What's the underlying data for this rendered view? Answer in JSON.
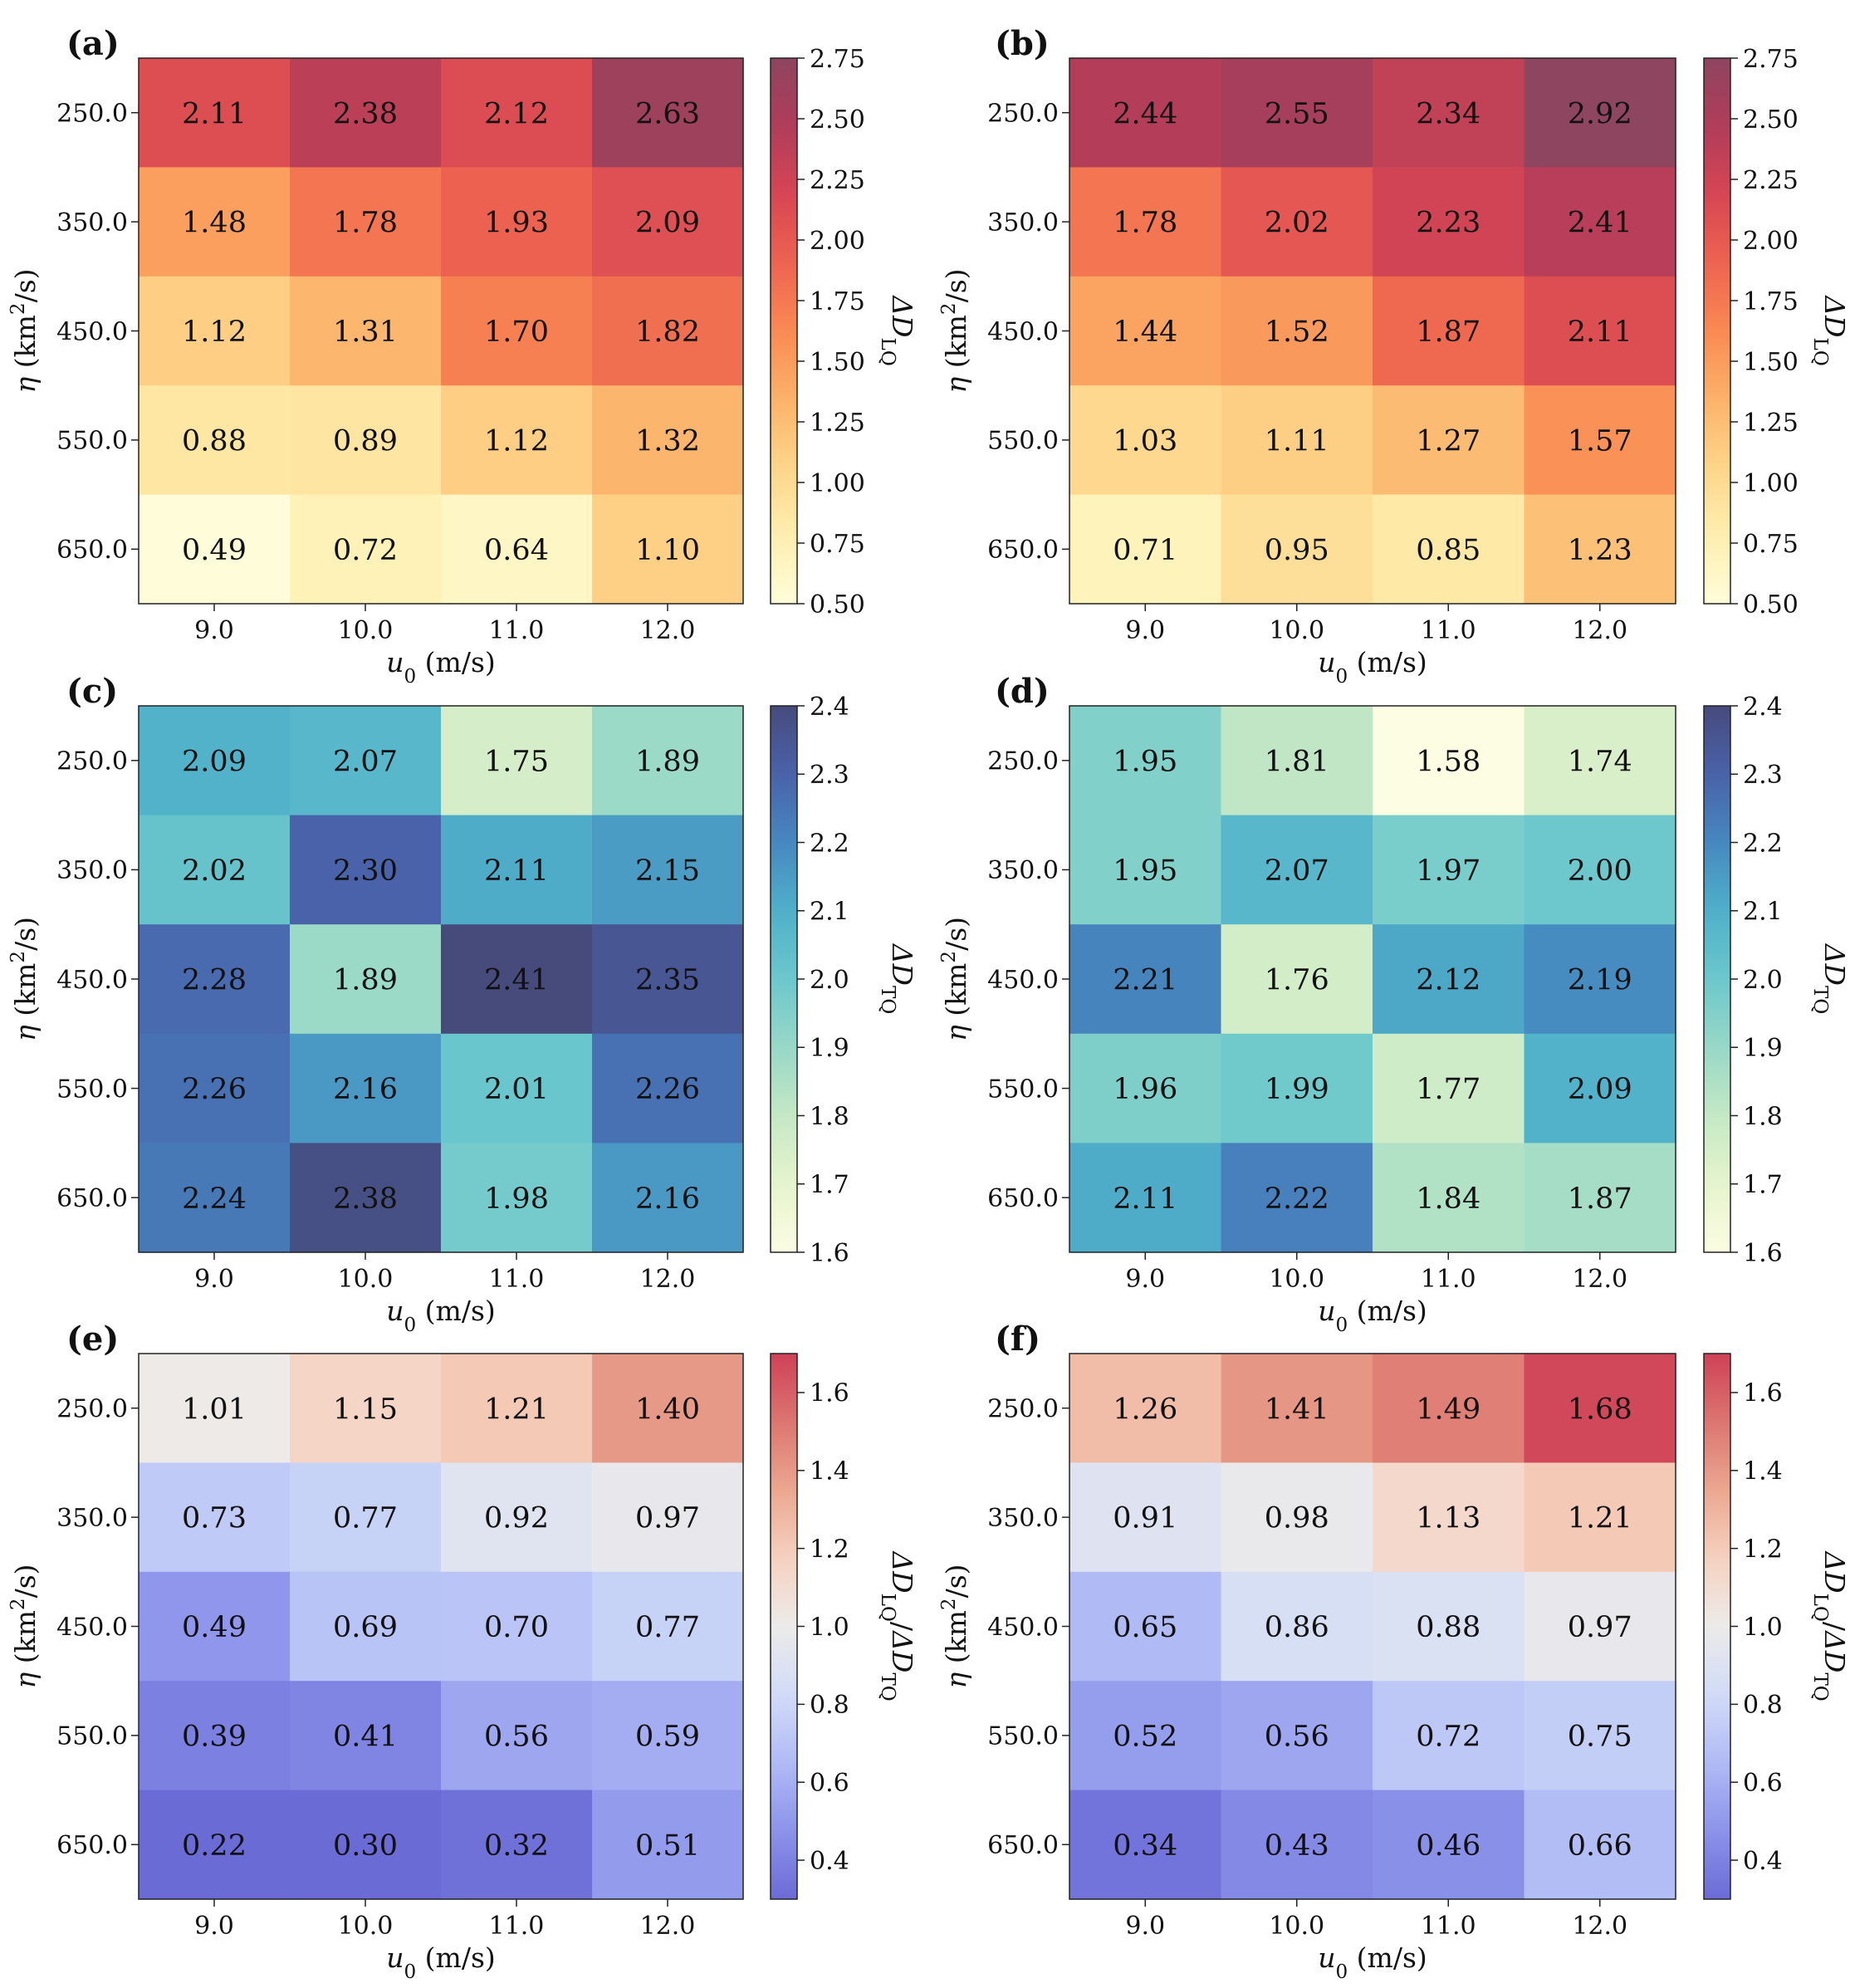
{
  "figure": {
    "x_axis_label_main": "u",
    "x_axis_label_sub": "0",
    "x_axis_label_unit": "(m/s)",
    "y_axis_label_main": "η",
    "y_axis_label_unit_pre": "(km",
    "y_axis_label_sup": "2",
    "y_axis_label_unit_post": "/s)"
  },
  "colorbar_labels": {
    "LQ": {
      "main": "ΔD",
      "sub": "LQ"
    },
    "TQ": {
      "main": "ΔD",
      "sub": "TQ"
    },
    "ratio": {
      "main1": "ΔD",
      "sub1": "LQ",
      "slash": "/",
      "main2": "ΔD",
      "sub2": "TQ"
    }
  },
  "chart_data": [
    {
      "type": "heatmap",
      "panel": "(a)",
      "xlabel": "u0 (m/s)",
      "ylabel": "η (km2/s)",
      "x": [
        "9.0",
        "10.0",
        "11.0",
        "12.0"
      ],
      "y": [
        "250.0",
        "350.0",
        "450.0",
        "550.0",
        "650.0"
      ],
      "values": [
        [
          2.11,
          2.38,
          2.12,
          2.63
        ],
        [
          1.48,
          1.78,
          1.93,
          2.09
        ],
        [
          1.12,
          1.31,
          1.7,
          1.82
        ],
        [
          0.88,
          0.89,
          1.12,
          1.32
        ],
        [
          0.49,
          0.72,
          0.64,
          1.1
        ]
      ],
      "labels": [
        [
          "2.11",
          "2.38",
          "2.12",
          "2.63"
        ],
        [
          "1.48",
          "1.78",
          "1.93",
          "2.09"
        ],
        [
          "1.12",
          "1.31",
          "1.70",
          "1.82"
        ],
        [
          "0.88",
          "0.89",
          "1.12",
          "1.32"
        ],
        [
          "0.49",
          "0.72",
          "0.64",
          "1.10"
        ]
      ],
      "colormap": "YlOrRd",
      "colorbar_label_key": "LQ",
      "clim": [
        0.5,
        2.75
      ],
      "cticks": [
        0.5,
        0.75,
        1.0,
        1.25,
        1.5,
        1.75,
        2.0,
        2.25,
        2.5,
        2.75
      ],
      "cticklabels": [
        "0.50",
        "0.75",
        "1.00",
        "1.25",
        "1.50",
        "1.75",
        "2.00",
        "2.25",
        "2.50",
        "2.75"
      ]
    },
    {
      "type": "heatmap",
      "panel": "(b)",
      "xlabel": "u0 (m/s)",
      "ylabel": "η (km2/s)",
      "x": [
        "9.0",
        "10.0",
        "11.0",
        "12.0"
      ],
      "y": [
        "250.0",
        "350.0",
        "450.0",
        "550.0",
        "650.0"
      ],
      "values": [
        [
          2.44,
          2.55,
          2.34,
          2.92
        ],
        [
          1.78,
          2.02,
          2.23,
          2.41
        ],
        [
          1.44,
          1.52,
          1.87,
          2.11
        ],
        [
          1.03,
          1.11,
          1.27,
          1.57
        ],
        [
          0.71,
          0.95,
          0.85,
          1.23
        ]
      ],
      "labels": [
        [
          "2.44",
          "2.55",
          "2.34",
          "2.92"
        ],
        [
          "1.78",
          "2.02",
          "2.23",
          "2.41"
        ],
        [
          "1.44",
          "1.52",
          "1.87",
          "2.11"
        ],
        [
          "1.03",
          "1.11",
          "1.27",
          "1.57"
        ],
        [
          "0.71",
          "0.95",
          "0.85",
          "1.23"
        ]
      ],
      "colormap": "YlOrRd",
      "colorbar_label_key": "LQ",
      "clim": [
        0.5,
        2.75
      ],
      "cticks": [
        0.5,
        0.75,
        1.0,
        1.25,
        1.5,
        1.75,
        2.0,
        2.25,
        2.5,
        2.75
      ],
      "cticklabels": [
        "0.50",
        "0.75",
        "1.00",
        "1.25",
        "1.50",
        "1.75",
        "2.00",
        "2.25",
        "2.50",
        "2.75"
      ]
    },
    {
      "type": "heatmap",
      "panel": "(c)",
      "xlabel": "u0 (m/s)",
      "ylabel": "η (km2/s)",
      "x": [
        "9.0",
        "10.0",
        "11.0",
        "12.0"
      ],
      "y": [
        "250.0",
        "350.0",
        "450.0",
        "550.0",
        "650.0"
      ],
      "values": [
        [
          2.09,
          2.07,
          1.75,
          1.89
        ],
        [
          2.02,
          2.3,
          2.11,
          2.15
        ],
        [
          2.28,
          1.89,
          2.41,
          2.35
        ],
        [
          2.26,
          2.16,
          2.01,
          2.26
        ],
        [
          2.24,
          2.38,
          1.98,
          2.16
        ]
      ],
      "labels": [
        [
          "2.09",
          "2.07",
          "1.75",
          "1.89"
        ],
        [
          "2.02",
          "2.30",
          "2.11",
          "2.15"
        ],
        [
          "2.28",
          "1.89",
          "2.41",
          "2.35"
        ],
        [
          "2.26",
          "2.16",
          "2.01",
          "2.26"
        ],
        [
          "2.24",
          "2.38",
          "1.98",
          "2.16"
        ]
      ],
      "colormap": "YlGnBu",
      "colorbar_label_key": "TQ",
      "clim": [
        1.6,
        2.4
      ],
      "cticks": [
        1.6,
        1.7,
        1.8,
        1.9,
        2.0,
        2.1,
        2.2,
        2.3,
        2.4
      ],
      "cticklabels": [
        "1.6",
        "1.7",
        "1.8",
        "1.9",
        "2.0",
        "2.1",
        "2.2",
        "2.3",
        "2.4"
      ]
    },
    {
      "type": "heatmap",
      "panel": "(d)",
      "xlabel": "u0 (m/s)",
      "ylabel": "η (km2/s)",
      "x": [
        "9.0",
        "10.0",
        "11.0",
        "12.0"
      ],
      "y": [
        "250.0",
        "350.0",
        "450.0",
        "550.0",
        "650.0"
      ],
      "values": [
        [
          1.95,
          1.81,
          1.58,
          1.74
        ],
        [
          1.95,
          2.07,
          1.97,
          2.0
        ],
        [
          2.21,
          1.76,
          2.12,
          2.19
        ],
        [
          1.96,
          1.99,
          1.77,
          2.09
        ],
        [
          2.11,
          2.22,
          1.84,
          1.87
        ]
      ],
      "labels": [
        [
          "1.95",
          "1.81",
          "1.58",
          "1.74"
        ],
        [
          "1.95",
          "2.07",
          "1.97",
          "2.00"
        ],
        [
          "2.21",
          "1.76",
          "2.12",
          "2.19"
        ],
        [
          "1.96",
          "1.99",
          "1.77",
          "2.09"
        ],
        [
          "2.11",
          "2.22",
          "1.84",
          "1.87"
        ]
      ],
      "colormap": "YlGnBu",
      "colorbar_label_key": "TQ",
      "clim": [
        1.6,
        2.4
      ],
      "cticks": [
        1.6,
        1.7,
        1.8,
        1.9,
        2.0,
        2.1,
        2.2,
        2.3,
        2.4
      ],
      "cticklabels": [
        "1.6",
        "1.7",
        "1.8",
        "1.9",
        "2.0",
        "2.1",
        "2.2",
        "2.3",
        "2.4"
      ]
    },
    {
      "type": "heatmap",
      "panel": "(e)",
      "xlabel": "u0 (m/s)",
      "ylabel": "η (km2/s)",
      "x": [
        "9.0",
        "10.0",
        "11.0",
        "12.0"
      ],
      "y": [
        "250.0",
        "350.0",
        "450.0",
        "550.0",
        "650.0"
      ],
      "values": [
        [
          1.01,
          1.15,
          1.21,
          1.4
        ],
        [
          0.73,
          0.77,
          0.92,
          0.97
        ],
        [
          0.49,
          0.69,
          0.7,
          0.77
        ],
        [
          0.39,
          0.41,
          0.56,
          0.59
        ],
        [
          0.22,
          0.3,
          0.32,
          0.51
        ]
      ],
      "labels": [
        [
          "1.01",
          "1.15",
          "1.21",
          "1.40"
        ],
        [
          "0.73",
          "0.77",
          "0.92",
          "0.97"
        ],
        [
          "0.49",
          "0.69",
          "0.70",
          "0.77"
        ],
        [
          "0.39",
          "0.41",
          "0.56",
          "0.59"
        ],
        [
          "0.22",
          "0.30",
          "0.32",
          "0.51"
        ]
      ],
      "colormap": "coolwarm",
      "colorbar_label_key": "ratio",
      "clim": [
        0.3,
        1.7
      ],
      "cticks": [
        0.4,
        0.6,
        0.8,
        1.0,
        1.2,
        1.4,
        1.6
      ],
      "cticklabels": [
        "0.4",
        "0.6",
        "0.8",
        "1.0",
        "1.2",
        "1.4",
        "1.6"
      ]
    },
    {
      "type": "heatmap",
      "panel": "(f)",
      "xlabel": "u0 (m/s)",
      "ylabel": "η (km2/s)",
      "x": [
        "9.0",
        "10.0",
        "11.0",
        "12.0"
      ],
      "y": [
        "250.0",
        "350.0",
        "450.0",
        "550.0",
        "650.0"
      ],
      "values": [
        [
          1.26,
          1.41,
          1.49,
          1.68
        ],
        [
          0.91,
          0.98,
          1.13,
          1.21
        ],
        [
          0.65,
          0.86,
          0.88,
          0.97
        ],
        [
          0.52,
          0.56,
          0.72,
          0.75
        ],
        [
          0.34,
          0.43,
          0.46,
          0.66
        ]
      ],
      "labels": [
        [
          "1.26",
          "1.41",
          "1.49",
          "1.68"
        ],
        [
          "0.91",
          "0.98",
          "1.13",
          "1.21"
        ],
        [
          "0.65",
          "0.86",
          "0.88",
          "0.97"
        ],
        [
          "0.52",
          "0.56",
          "0.72",
          "0.75"
        ],
        [
          "0.34",
          "0.43",
          "0.46",
          "0.66"
        ]
      ],
      "colormap": "coolwarm",
      "colorbar_label_key": "ratio",
      "clim": [
        0.3,
        1.7
      ],
      "cticks": [
        0.4,
        0.6,
        0.8,
        1.0,
        1.2,
        1.4,
        1.6
      ],
      "cticklabels": [
        "0.4",
        "0.6",
        "0.8",
        "1.0",
        "1.2",
        "1.4",
        "1.6"
      ]
    }
  ]
}
